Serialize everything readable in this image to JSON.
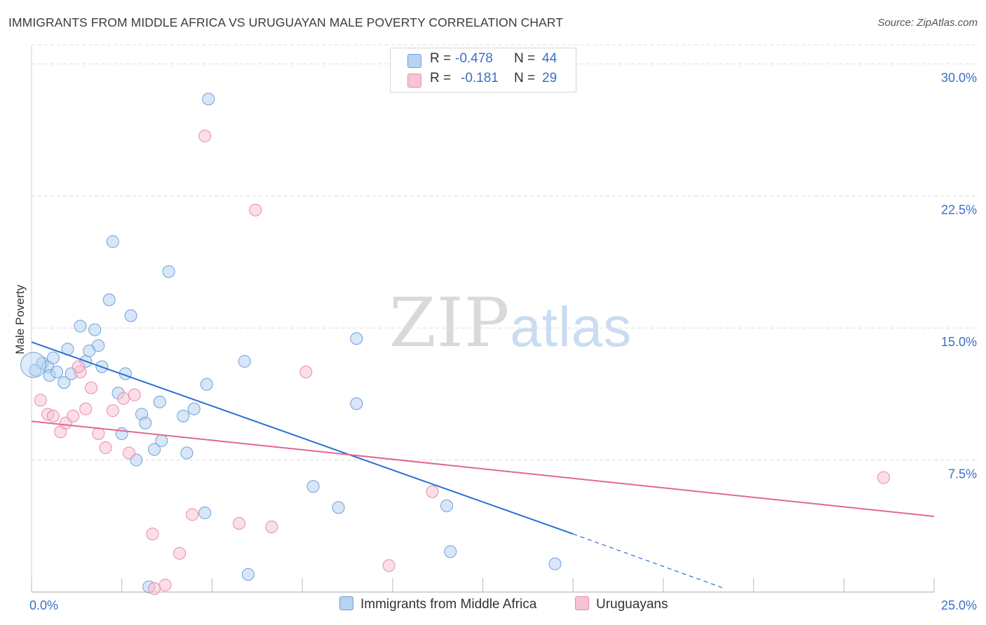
{
  "title": "IMMIGRANTS FROM MIDDLE AFRICA VS URUGUAYAN MALE POVERTY CORRELATION CHART",
  "source": "Source: ZipAtlas.com",
  "watermark": {
    "zip": "ZIP",
    "atlas": "atlas"
  },
  "legend": {
    "blue": {
      "r_label": "R =",
      "r_value": "-0.478",
      "n_label": "N =",
      "n_value": "44"
    },
    "pink": {
      "r_label": "R =",
      "r_value": "-0.181",
      "n_label": "N =",
      "n_value": "29"
    }
  },
  "colors": {
    "blue_fill": "#b7d3f2",
    "blue_stroke": "#6f9fd8",
    "blue_line": "#2a6fd6",
    "pink_fill": "#f7c4d4",
    "pink_stroke": "#e88aa8",
    "pink_line": "#e2688e",
    "grid": "#dcdcdc",
    "tick_label": "#3a6fc9"
  },
  "chart_data": {
    "type": "scatter",
    "title": "IMMIGRANTS FROM MIDDLE AFRICA VS URUGUAYAN MALE POVERTY CORRELATION CHART",
    "xlabel": "",
    "ylabel": "Male Poverty",
    "xlim": [
      0,
      25
    ],
    "ylim": [
      0,
      31
    ],
    "x_tick_labels": [
      "0.0%",
      "25.0%"
    ],
    "y_ticks": [
      7.5,
      15.0,
      22.5,
      30.0
    ],
    "y_tick_labels": [
      "7.5%",
      "15.0%",
      "22.5%",
      "30.0%"
    ],
    "series": [
      {
        "name": "Immigrants from Middle Africa",
        "color": "blue",
        "points": [
          [
            0.1,
            12.6
          ],
          [
            0.3,
            13.0
          ],
          [
            0.45,
            12.8
          ],
          [
            0.5,
            12.3
          ],
          [
            0.6,
            13.3
          ],
          [
            0.7,
            12.5
          ],
          [
            0.9,
            11.9
          ],
          [
            1.0,
            13.8
          ],
          [
            1.1,
            12.4
          ],
          [
            1.35,
            15.1
          ],
          [
            1.5,
            13.1
          ],
          [
            1.6,
            13.7
          ],
          [
            1.75,
            14.9
          ],
          [
            1.85,
            14.0
          ],
          [
            1.95,
            12.8
          ],
          [
            2.15,
            16.6
          ],
          [
            2.25,
            19.9
          ],
          [
            2.4,
            11.3
          ],
          [
            2.5,
            9.0
          ],
          [
            2.6,
            12.4
          ],
          [
            2.75,
            15.7
          ],
          [
            2.9,
            7.5
          ],
          [
            3.05,
            10.1
          ],
          [
            3.15,
            9.6
          ],
          [
            3.4,
            8.1
          ],
          [
            3.55,
            10.8
          ],
          [
            3.6,
            8.6
          ],
          [
            3.8,
            18.2
          ],
          [
            4.2,
            10.0
          ],
          [
            4.3,
            7.9
          ],
          [
            4.5,
            10.4
          ],
          [
            4.8,
            4.5
          ],
          [
            4.85,
            11.8
          ],
          [
            4.9,
            28.0
          ],
          [
            5.9,
            13.1
          ],
          [
            6.0,
            1.0
          ],
          [
            7.8,
            6.0
          ],
          [
            8.5,
            4.8
          ],
          [
            9.0,
            14.4
          ],
          [
            9.0,
            10.7
          ],
          [
            11.5,
            4.9
          ],
          [
            11.6,
            2.3
          ],
          [
            14.5,
            1.6
          ],
          [
            3.25,
            0.3
          ]
        ],
        "trend": {
          "x": [
            0,
            15
          ],
          "y": [
            14.2,
            3.3
          ],
          "dashed_to": [
            19.2,
            0.2
          ]
        }
      },
      {
        "name": "Uruguayans",
        "color": "pink",
        "points": [
          [
            0.25,
            10.9
          ],
          [
            0.45,
            10.1
          ],
          [
            0.6,
            10.0
          ],
          [
            0.8,
            9.1
          ],
          [
            0.95,
            9.6
          ],
          [
            1.15,
            10.0
          ],
          [
            1.35,
            12.5
          ],
          [
            1.5,
            10.4
          ],
          [
            1.65,
            11.6
          ],
          [
            1.85,
            9.0
          ],
          [
            2.05,
            8.2
          ],
          [
            2.25,
            10.3
          ],
          [
            2.55,
            11.0
          ],
          [
            2.7,
            7.9
          ],
          [
            2.85,
            11.2
          ],
          [
            3.35,
            3.3
          ],
          [
            3.7,
            0.4
          ],
          [
            4.1,
            2.2
          ],
          [
            4.45,
            4.4
          ],
          [
            4.8,
            25.9
          ],
          [
            5.75,
            3.9
          ],
          [
            6.2,
            21.7
          ],
          [
            6.65,
            3.7
          ],
          [
            7.6,
            12.5
          ],
          [
            9.9,
            1.5
          ],
          [
            11.1,
            5.7
          ],
          [
            23.6,
            6.5
          ],
          [
            3.4,
            0.2
          ],
          [
            1.3,
            12.8
          ]
        ],
        "trend": {
          "x": [
            0,
            25
          ],
          "y": [
            9.7,
            4.3
          ]
        }
      }
    ]
  },
  "bottom_legend": {
    "blue": "Immigrants from Middle Africa",
    "pink": "Uruguayans"
  }
}
